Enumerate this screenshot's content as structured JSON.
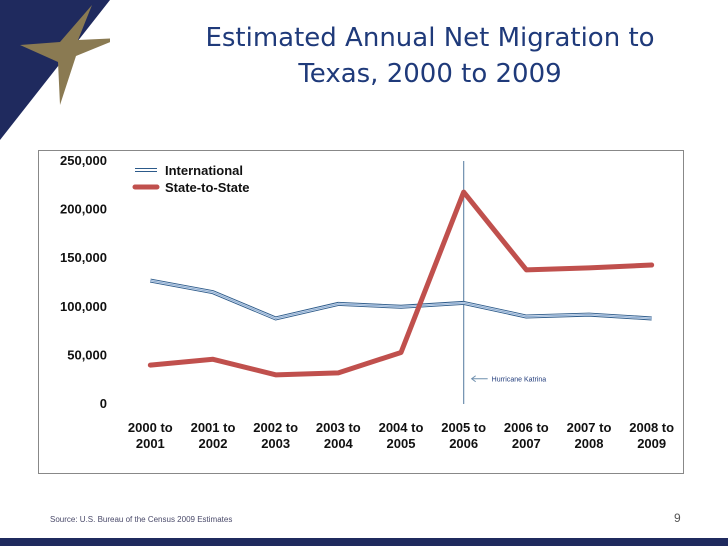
{
  "slide": {
    "title_line1": "Estimated Annual Net Migration to",
    "title_line2": "Texas, 2000 to 2009",
    "source": "Source: U.S. Bureau of the Census 2009 Estimates",
    "page_number": "9"
  },
  "colors": {
    "title": "#1f3a7a",
    "international": "#4f81bd",
    "state_to_state": "#c0504d",
    "corner_blue": "#1f2a5e",
    "star_gold": "#8a7a52"
  },
  "chart_data": {
    "type": "line",
    "title": "",
    "xlabel": "",
    "ylabel": "",
    "ylim": [
      0,
      250000
    ],
    "yticks": [
      0,
      50000,
      100000,
      150000,
      200000,
      250000
    ],
    "ytick_labels": [
      "0",
      "50,000",
      "100,000",
      "150,000",
      "200,000",
      "250,000"
    ],
    "categories": [
      [
        "2000 to",
        "2001"
      ],
      [
        "2001 to",
        "2002"
      ],
      [
        "2002 to",
        "2003"
      ],
      [
        "2003 to",
        "2004"
      ],
      [
        "2004 to",
        "2005"
      ],
      [
        "2005 to",
        "2006"
      ],
      [
        "2006 to",
        "2007"
      ],
      [
        "2007 to",
        "2008"
      ],
      [
        "2008 to",
        "2009"
      ]
    ],
    "series": [
      {
        "name": "International",
        "color": "#4f81bd",
        "values": [
          127000,
          115000,
          88000,
          103000,
          100000,
          104000,
          90000,
          92000,
          88000
        ]
      },
      {
        "name": "State-to-State",
        "color": "#c0504d",
        "values": [
          40000,
          46000,
          30000,
          32000,
          53000,
          218000,
          138000,
          140000,
          143000
        ]
      }
    ],
    "legend": "top-left",
    "annotation": {
      "text": "Hurricane Katrina",
      "category_index": 5
    }
  }
}
